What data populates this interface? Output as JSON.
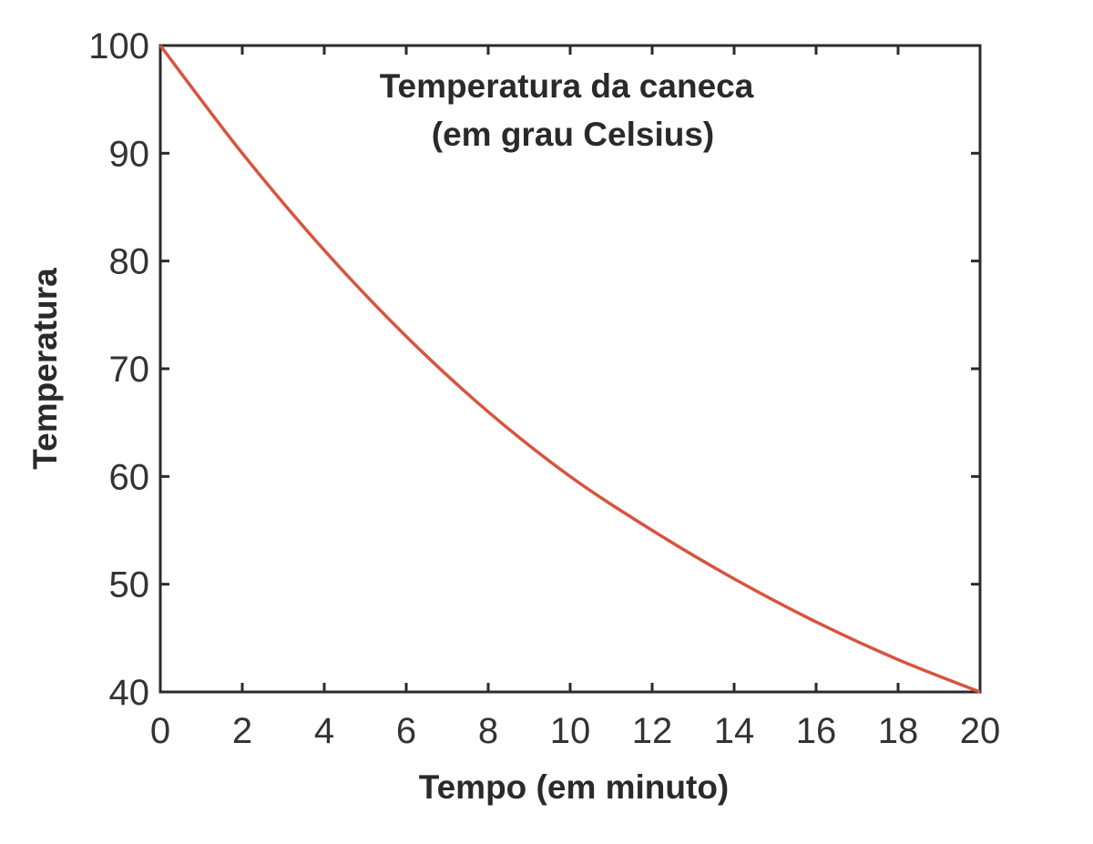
{
  "chart_data": {
    "type": "line",
    "title": [
      "Temperatura da caneca",
      "(em grau Celsius)"
    ],
    "xlabel": "Tempo (em minuto)",
    "ylabel": "Temperatura",
    "xlim": [
      0,
      20
    ],
    "ylim": [
      40,
      100
    ],
    "xticks": [
      0,
      2,
      4,
      6,
      8,
      10,
      12,
      14,
      16,
      18,
      20
    ],
    "yticks": [
      40,
      50,
      60,
      70,
      80,
      90,
      100
    ],
    "grid": false,
    "series": [
      {
        "color": "#d9533f",
        "x": [
          0,
          2,
          4,
          6,
          8,
          10,
          12,
          14,
          16,
          18,
          20
        ],
        "y": [
          100,
          90,
          81,
          73,
          66,
          60,
          55,
          50.5,
          46.5,
          43,
          40
        ]
      }
    ]
  }
}
